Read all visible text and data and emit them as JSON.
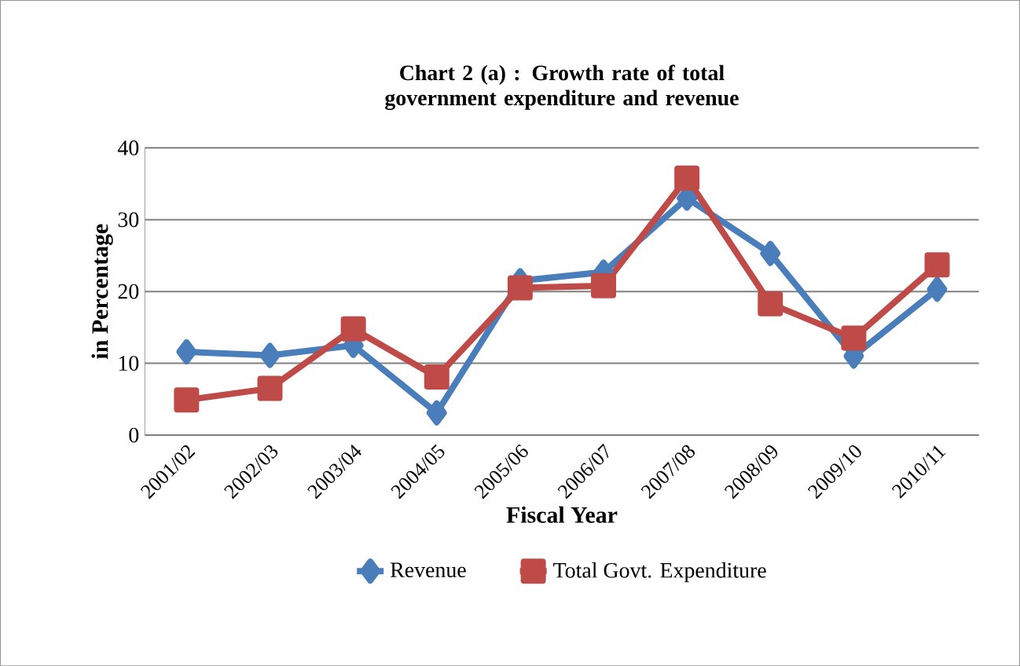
{
  "chart_data": {
    "type": "line",
    "title": "Chart 2 (a) : Growth rate of total government expenditure and revenue",
    "xlabel": "Fiscal Year",
    "ylabel": "in Percentage",
    "categories": [
      "2001/02",
      "2002/03",
      "2003/04",
      "2004/05",
      "2005/06",
      "2006/07",
      "2007/08",
      "2008/09",
      "2009/10",
      "2010/11"
    ],
    "series": [
      {
        "name": "Revenue",
        "color": "#4a7ebb",
        "marker": "diamond",
        "values": [
          11.6,
          11.1,
          12.5,
          3.1,
          21.5,
          22.7,
          33,
          25.3,
          11,
          20.3
        ]
      },
      {
        "name": "Total Govt. Expenditure",
        "color": "#be4b48",
        "marker": "square",
        "values": [
          4.9,
          6.5,
          14.8,
          8.1,
          20.5,
          20.8,
          35.8,
          18.3,
          13.5,
          23.7
        ]
      }
    ],
    "ylim": [
      0,
      40
    ],
    "yticks": [
      0,
      10,
      20,
      30,
      40
    ],
    "grid": "y",
    "legend": "bottom",
    "line_style": "solid"
  }
}
